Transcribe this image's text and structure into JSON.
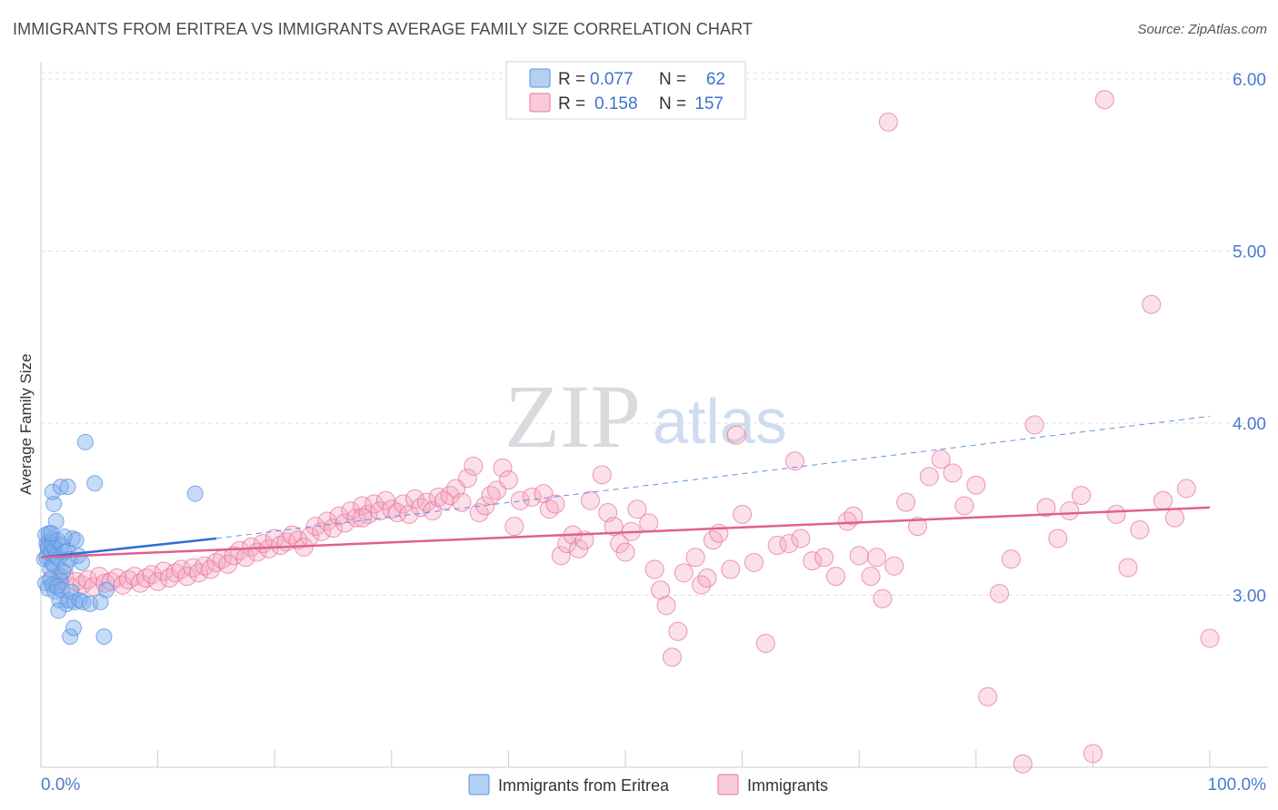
{
  "title": "IMMIGRANTS FROM ERITREA VS IMMIGRANTS AVERAGE FAMILY SIZE CORRELATION CHART",
  "source": "Source: ZipAtlas.com",
  "watermark": {
    "zip": "ZIP",
    "atlas": "atlas"
  },
  "legend_top": {
    "rows": [
      {
        "r_label": "R =",
        "r_value": "0.077",
        "n_label": "N =",
        "n_value": "62",
        "color": "#7fb0ea"
      },
      {
        "r_label": "R =",
        "r_value": "0.158",
        "n_label": "N =",
        "n_value": "157",
        "color": "#f3a6c0"
      }
    ]
  },
  "legend_bottom": [
    {
      "label": "Immigrants from Eritrea",
      "color": "#7fb0ea"
    },
    {
      "label": "Immigrants",
      "color": "#f3a6c0"
    }
  ],
  "chart_data": {
    "type": "scatter",
    "ylabel": "Average Family Size",
    "xlim": [
      0,
      100
    ],
    "ylim": [
      2.0,
      6.1
    ],
    "x_tick_labels": [
      "0.0%",
      "100.0%"
    ],
    "y_ticks": [
      3.0,
      4.0,
      5.0,
      6.0
    ],
    "y_tick_labels": [
      "3.00",
      "4.00",
      "5.00",
      "6.00"
    ],
    "grid": true,
    "series": [
      {
        "name": "Immigrants from Eritrea",
        "color": "#5b93e0",
        "fill": "rgba(127,176,234,0.45)",
        "trend": {
          "x0": 0,
          "y0": 3.22,
          "x1": 15,
          "y1": 3.33,
          "extend_to": 100,
          "extend_y": 4.04
        },
        "points": [
          [
            0.3,
            3.21
          ],
          [
            0.4,
            3.35
          ],
          [
            0.5,
            3.3
          ],
          [
            0.6,
            3.27
          ],
          [
            0.7,
            3.31
          ],
          [
            0.8,
            3.26
          ],
          [
            0.9,
            3.19
          ],
          [
            1.0,
            3.33
          ],
          [
            0.5,
            3.22
          ],
          [
            0.6,
            3.28
          ],
          [
            0.7,
            3.36
          ],
          [
            0.8,
            3.15
          ],
          [
            0.9,
            3.24
          ],
          [
            1.0,
            3.29
          ],
          [
            1.1,
            3.18
          ],
          [
            1.2,
            3.27
          ],
          [
            1.3,
            3.23
          ],
          [
            1.4,
            3.32
          ],
          [
            1.5,
            3.21
          ],
          [
            1.6,
            3.11
          ],
          [
            1.7,
            3.08
          ],
          [
            1.8,
            3.29
          ],
          [
            1.9,
            3.14
          ],
          [
            2.0,
            3.25
          ],
          [
            0.4,
            3.07
          ],
          [
            0.6,
            3.04
          ],
          [
            0.8,
            3.09
          ],
          [
            1.0,
            3.06
          ],
          [
            1.2,
            3.02
          ],
          [
            1.4,
            3.05
          ],
          [
            1.6,
            2.97
          ],
          [
            1.8,
            3.03
          ],
          [
            2.1,
            3.17
          ],
          [
            2.3,
            3.26
          ],
          [
            2.5,
            3.21
          ],
          [
            2.7,
            3.33
          ],
          [
            3.0,
            3.32
          ],
          [
            3.2,
            3.23
          ],
          [
            3.5,
            3.19
          ],
          [
            2.2,
            2.95
          ],
          [
            2.4,
            2.97
          ],
          [
            2.6,
            3.02
          ],
          [
            2.9,
            2.96
          ],
          [
            3.3,
            2.97
          ],
          [
            3.6,
            2.96
          ],
          [
            4.2,
            2.95
          ],
          [
            5.1,
            2.96
          ],
          [
            5.6,
            3.03
          ],
          [
            1.1,
            3.53
          ],
          [
            1.0,
            3.6
          ],
          [
            1.3,
            3.43
          ],
          [
            1.7,
            3.63
          ],
          [
            2.3,
            3.63
          ],
          [
            4.6,
            3.65
          ],
          [
            3.8,
            3.89
          ],
          [
            13.2,
            3.59
          ],
          [
            1.5,
            2.91
          ],
          [
            2.5,
            2.76
          ],
          [
            2.8,
            2.81
          ],
          [
            5.4,
            2.76
          ],
          [
            0.9,
            3.36
          ],
          [
            2.0,
            3.34
          ]
        ]
      },
      {
        "name": "Immigrants",
        "color": "#e8749c",
        "fill": "rgba(243,166,192,0.35)",
        "trend": {
          "x0": 0,
          "y0": 3.22,
          "x1": 100,
          "y1": 3.51
        },
        "points": [
          [
            1,
            3.1
          ],
          [
            1.5,
            3.07
          ],
          [
            2,
            3.12
          ],
          [
            2.5,
            3.05
          ],
          [
            3,
            3.08
          ],
          [
            3.5,
            3.06
          ],
          [
            4,
            3.09
          ],
          [
            4.5,
            3.05
          ],
          [
            5,
            3.11
          ],
          [
            5.5,
            3.07
          ],
          [
            6,
            3.08
          ],
          [
            6.5,
            3.1
          ],
          [
            7,
            3.06
          ],
          [
            7.5,
            3.09
          ],
          [
            8,
            3.11
          ],
          [
            8.5,
            3.07
          ],
          [
            9,
            3.1
          ],
          [
            9.5,
            3.12
          ],
          [
            10,
            3.08
          ],
          [
            10.5,
            3.14
          ],
          [
            11,
            3.1
          ],
          [
            11.5,
            3.13
          ],
          [
            12,
            3.15
          ],
          [
            12.5,
            3.11
          ],
          [
            13,
            3.16
          ],
          [
            13.5,
            3.13
          ],
          [
            14,
            3.17
          ],
          [
            14.5,
            3.15
          ],
          [
            15,
            3.19
          ],
          [
            15.5,
            3.21
          ],
          [
            16,
            3.18
          ],
          [
            16.5,
            3.23
          ],
          [
            17,
            3.26
          ],
          [
            17.5,
            3.22
          ],
          [
            18,
            3.28
          ],
          [
            18.5,
            3.25
          ],
          [
            19,
            3.3
          ],
          [
            19.5,
            3.27
          ],
          [
            20,
            3.33
          ],
          [
            20.5,
            3.29
          ],
          [
            21,
            3.31
          ],
          [
            21.5,
            3.35
          ],
          [
            22,
            3.32
          ],
          [
            22.5,
            3.28
          ],
          [
            23,
            3.34
          ],
          [
            23.5,
            3.4
          ],
          [
            24,
            3.37
          ],
          [
            24.5,
            3.43
          ],
          [
            25,
            3.39
          ],
          [
            25.5,
            3.46
          ],
          [
            26,
            3.42
          ],
          [
            26.5,
            3.49
          ],
          [
            27,
            3.45
          ],
          [
            27.5,
            3.52
          ],
          [
            28,
            3.47
          ],
          [
            28.5,
            3.53
          ],
          [
            29,
            3.49
          ],
          [
            29.5,
            3.55
          ],
          [
            30,
            3.5
          ],
          [
            30.5,
            3.48
          ],
          [
            31,
            3.53
          ],
          [
            31.5,
            3.47
          ],
          [
            32,
            3.56
          ],
          [
            32.5,
            3.51
          ],
          [
            33,
            3.54
          ],
          [
            33.5,
            3.49
          ],
          [
            34,
            3.57
          ],
          [
            34.5,
            3.55
          ],
          [
            35,
            3.58
          ],
          [
            35.5,
            3.62
          ],
          [
            36,
            3.54
          ],
          [
            36.5,
            3.68
          ],
          [
            37,
            3.75
          ],
          [
            37.5,
            3.48
          ],
          [
            38,
            3.52
          ],
          [
            38.5,
            3.58
          ],
          [
            39,
            3.61
          ],
          [
            39.5,
            3.74
          ],
          [
            40,
            3.67
          ],
          [
            40.5,
            3.4
          ],
          [
            41,
            3.55
          ],
          [
            42,
            3.57
          ],
          [
            43,
            3.59
          ],
          [
            43.5,
            3.5
          ],
          [
            44,
            3.53
          ],
          [
            44.5,
            3.23
          ],
          [
            45,
            3.3
          ],
          [
            45.5,
            3.35
          ],
          [
            46,
            3.27
          ],
          [
            46.5,
            3.32
          ],
          [
            47,
            3.55
          ],
          [
            48,
            3.7
          ],
          [
            48.5,
            3.48
          ],
          [
            49,
            3.4
          ],
          [
            49.5,
            3.3
          ],
          [
            50,
            3.25
          ],
          [
            50.5,
            3.37
          ],
          [
            51,
            3.5
          ],
          [
            52,
            3.42
          ],
          [
            52.5,
            3.15
          ],
          [
            53,
            3.03
          ],
          [
            53.5,
            2.94
          ],
          [
            54,
            2.64
          ],
          [
            54.5,
            2.79
          ],
          [
            55,
            3.13
          ],
          [
            56,
            3.22
          ],
          [
            56.5,
            3.06
          ],
          [
            57,
            3.1
          ],
          [
            57.5,
            3.32
          ],
          [
            58,
            3.36
          ],
          [
            59,
            3.15
          ],
          [
            59.5,
            3.93
          ],
          [
            60,
            3.47
          ],
          [
            61,
            3.19
          ],
          [
            62,
            2.72
          ],
          [
            63,
            3.29
          ],
          [
            64,
            3.3
          ],
          [
            64.5,
            3.78
          ],
          [
            65,
            3.33
          ],
          [
            66,
            3.2
          ],
          [
            67,
            3.22
          ],
          [
            68,
            3.11
          ],
          [
            69,
            3.43
          ],
          [
            69.5,
            3.46
          ],
          [
            70,
            3.23
          ],
          [
            71,
            3.11
          ],
          [
            71.5,
            3.22
          ],
          [
            72,
            2.98
          ],
          [
            73,
            3.17
          ],
          [
            74,
            3.54
          ],
          [
            75,
            3.4
          ],
          [
            76,
            3.69
          ],
          [
            77,
            3.79
          ],
          [
            78,
            3.71
          ],
          [
            79,
            3.52
          ],
          [
            80,
            3.64
          ],
          [
            81,
            2.41
          ],
          [
            82,
            3.01
          ],
          [
            83,
            3.21
          ],
          [
            84,
            2.02
          ],
          [
            85,
            3.99
          ],
          [
            86,
            3.51
          ],
          [
            87,
            3.33
          ],
          [
            88,
            3.49
          ],
          [
            89,
            3.58
          ],
          [
            90,
            2.08
          ],
          [
            91,
            5.88
          ],
          [
            92,
            3.47
          ],
          [
            93,
            3.16
          ],
          [
            94,
            3.38
          ],
          [
            95,
            4.69
          ],
          [
            96,
            3.55
          ],
          [
            97,
            3.45
          ],
          [
            98,
            3.62
          ],
          [
            100,
            2.75
          ],
          [
            72.5,
            5.75
          ],
          [
            27.5,
            3.45
          ]
        ]
      }
    ]
  }
}
